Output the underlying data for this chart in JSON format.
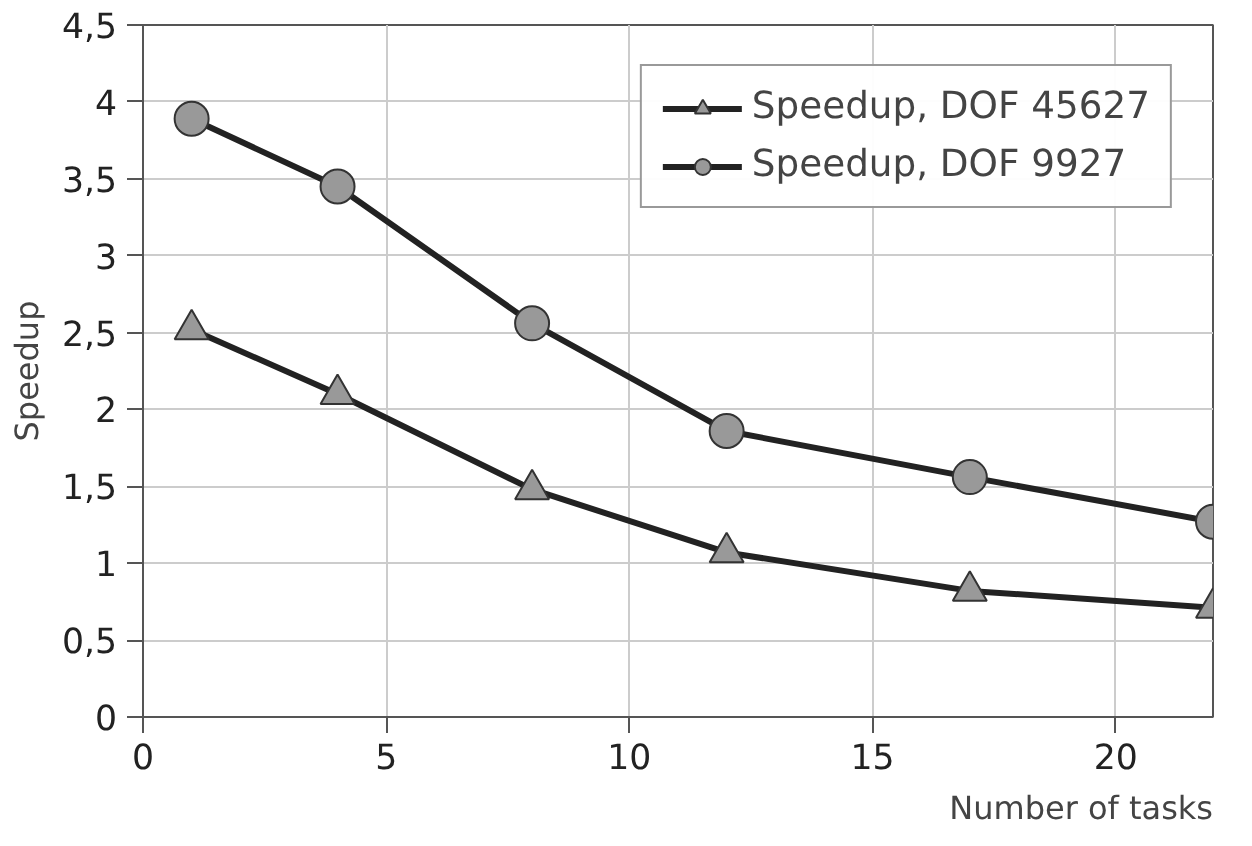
{
  "chart_data": {
    "type": "line",
    "xlabel": "Number of tasks",
    "ylabel": "Speedup",
    "x": [
      1,
      4,
      8,
      12,
      17,
      22
    ],
    "series": [
      {
        "name": "Speedup, DOF 45627",
        "color": "#222222",
        "marker": "triangle",
        "values": [
          2.52,
          2.1,
          1.48,
          1.07,
          0.82,
          0.71
        ]
      },
      {
        "name": "Speedup, DOF 9927",
        "color": "#222222",
        "marker": "circle",
        "values": [
          3.89,
          3.45,
          2.56,
          1.86,
          1.56,
          1.27
        ]
      }
    ],
    "xlim": [
      0,
      22
    ],
    "ylim": [
      0,
      4.5
    ],
    "xticks": [
      0,
      5,
      10,
      15,
      20
    ],
    "yticks": [
      0,
      {
        "value": 0.5,
        "label": "0,5"
      },
      1,
      {
        "value": 1.5,
        "label": "1,5"
      },
      2,
      {
        "value": 2.5,
        "label": "2,5"
      },
      3,
      {
        "value": 3.5,
        "label": "3,5"
      },
      4,
      {
        "value": 4.5,
        "label": "4,5"
      }
    ],
    "grid": true,
    "legend": "top right",
    "line_style": "solid"
  }
}
